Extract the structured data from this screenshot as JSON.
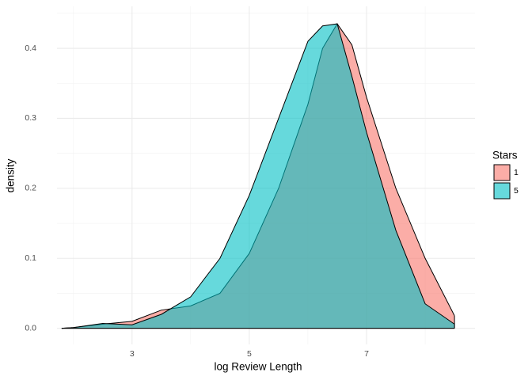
{
  "chart_data": {
    "type": "density",
    "x_label": "log Review Length",
    "y_label": "density",
    "x": [
      1.8,
      2,
      2.5,
      3,
      3.5,
      4,
      4.5,
      5,
      5.5,
      6,
      6.25,
      6.5,
      6.75,
      7,
      7.5,
      8,
      8.5
    ],
    "series": [
      {
        "name": "1",
        "color": "#F8766D",
        "values": [
          0,
          0.001,
          0.006,
          0.01,
          0.026,
          0.032,
          0.05,
          0.107,
          0.2,
          0.32,
          0.4,
          0.435,
          0.405,
          0.33,
          0.2,
          0.1,
          0.018
        ]
      },
      {
        "name": "5",
        "color": "#00BFC4",
        "values": [
          0,
          0.001,
          0.007,
          0.005,
          0.02,
          0.045,
          0.1,
          0.19,
          0.3,
          0.41,
          0.432,
          0.435,
          0.36,
          0.28,
          0.14,
          0.035,
          0.006
        ]
      }
    ],
    "xlim": [
      1.72,
      8.85
    ],
    "ylim": [
      -0.023,
      0.46
    ],
    "xticks": [
      3,
      5,
      7
    ],
    "yticks": [
      {
        "value": 0,
        "label": "0.0"
      },
      0.1,
      0.2,
      0.3,
      0.4
    ],
    "grid": true,
    "legend_title": "Stars",
    "legend": "right"
  }
}
